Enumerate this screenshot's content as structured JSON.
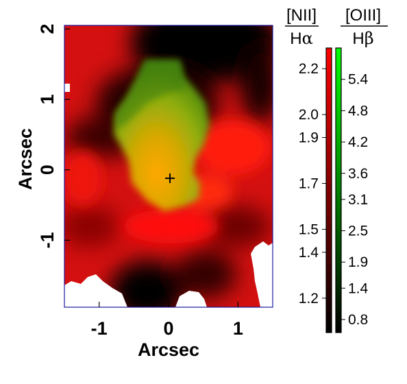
{
  "chart_data": {
    "type": "heatmap",
    "description_colors": {
      "channel_red": "[NII]/Halpha ratio",
      "channel_green": "[OIII]/Hbeta ratio"
    },
    "xlabel": "Arcsec",
    "ylabel": "Arcsec",
    "xlim": [
      -1.5,
      1.5
    ],
    "ylim": [
      -1.95,
      2.05
    ],
    "xticks": [
      -1,
      0,
      1
    ],
    "xtick_labels": [
      "-1",
      "0",
      "1"
    ],
    "yticks": [
      -1,
      0,
      1,
      2
    ],
    "ytick_labels": [
      "-1",
      "0",
      "1",
      "2"
    ],
    "marker": {
      "symbol": "+",
      "x": 0.02,
      "y": -0.12
    },
    "colorbars": [
      {
        "numerator": "[NII]",
        "denominator": "H",
        "denominator_greek": "α",
        "color": "#ff0000",
        "ticks": [
          1.2,
          1.4,
          1.5,
          1.7,
          1.9,
          2.0,
          2.2
        ],
        "tick_labels": [
          "1.2",
          "1.4",
          "1.5",
          "1.7",
          "1.9",
          "2.0",
          "2.2"
        ],
        "range": [
          1.05,
          2.29
        ]
      },
      {
        "numerator": "[OIII]",
        "denominator": "H",
        "denominator_greek": "β",
        "color": "#00ff00",
        "ticks": [
          0.8,
          1.4,
          1.9,
          2.5,
          3.1,
          3.6,
          4.2,
          4.8,
          5.4
        ],
        "tick_labels": [
          "0.8",
          "1.4",
          "1.9",
          "2.5",
          "3.1",
          "3.6",
          "4.2",
          "4.8",
          "5.4"
        ],
        "range": [
          0.55,
          6.0
        ]
      }
    ],
    "grid": false
  },
  "colors": {
    "frame": "#1a1aa0",
    "background": "#ffffff"
  }
}
